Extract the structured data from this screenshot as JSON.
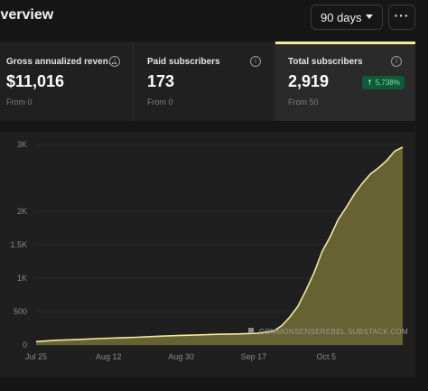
{
  "header": {
    "title": "Overview",
    "range_select": {
      "value": "90 days"
    },
    "more_label": "···"
  },
  "cards": [
    {
      "label": "Gross annualized reven…",
      "value": "$11,016",
      "sub": "From 0"
    },
    {
      "label": "Paid subscribers",
      "value": "173",
      "sub": "From 0"
    },
    {
      "label": "Total subscribers",
      "value": "2,919",
      "sub": "From 50",
      "badge": "5,738%",
      "active": true
    }
  ],
  "colors": {
    "accent": "#f3ec9a",
    "area_fill": "#6e6936",
    "badge_bg": "#0f5a37",
    "badge_text": "#7fe3ad"
  },
  "chart_data": {
    "type": "area",
    "watermark": "COMMONSENSEREBEL.SUBSTACK.COM",
    "x_ticks": [
      "Jul 25",
      "Aug 12",
      "Aug 30",
      "Sep 17",
      "Oct 5"
    ],
    "y_ticks": [
      "0",
      "500",
      "1K",
      "1.5K",
      "2K",
      "3K"
    ],
    "ylim": [
      0,
      3000
    ],
    "xlim": [
      "Jul 25",
      "Oct 24"
    ],
    "grid": true,
    "series": [
      {
        "points": [
          [
            "Jul 25",
            50
          ],
          [
            "Jul 30",
            70
          ],
          [
            "Aug 4",
            80
          ],
          [
            "Aug 9",
            95
          ],
          [
            "Aug 14",
            105
          ],
          [
            "Aug 19",
            115
          ],
          [
            "Aug 24",
            130
          ],
          [
            "Aug 29",
            140
          ],
          [
            "Sep 3",
            150
          ],
          [
            "Sep 8",
            160
          ],
          [
            "Sep 13",
            165
          ],
          [
            "Sep 18",
            175
          ],
          [
            "Sep 22",
            210
          ],
          [
            "Sep 24",
            290
          ],
          [
            "Sep 26",
            420
          ],
          [
            "Sep 28",
            580
          ],
          [
            "Sep 30",
            820
          ],
          [
            "Oct 2",
            1080
          ],
          [
            "Oct 4",
            1400
          ],
          [
            "Oct 6",
            1620
          ],
          [
            "Oct 8",
            1880
          ],
          [
            "Oct 10",
            2060
          ],
          [
            "Oct 12",
            2260
          ],
          [
            "Oct 14",
            2420
          ],
          [
            "Oct 16",
            2560
          ],
          [
            "Oct 18",
            2650
          ],
          [
            "Oct 20",
            2760
          ],
          [
            "Oct 22",
            2900
          ],
          [
            "Oct 24",
            2960
          ]
        ]
      }
    ]
  }
}
